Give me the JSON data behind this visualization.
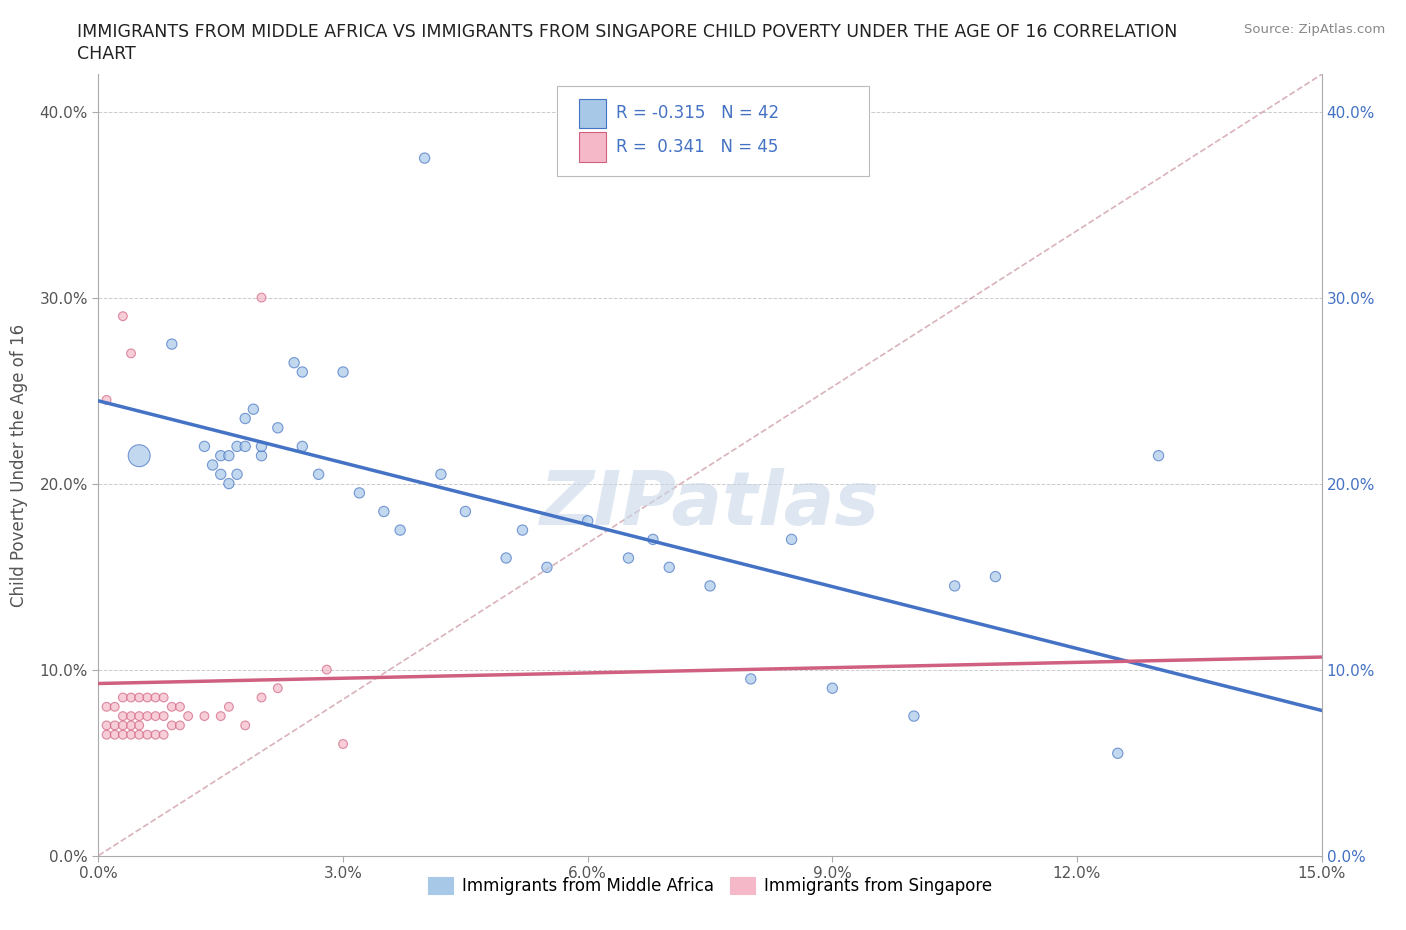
{
  "title_line1": "IMMIGRANTS FROM MIDDLE AFRICA VS IMMIGRANTS FROM SINGAPORE CHILD POVERTY UNDER THE AGE OF 16 CORRELATION",
  "title_line2": "CHART",
  "source": "Source: ZipAtlas.com",
  "ylabel": "Child Poverty Under the Age of 16",
  "xlim": [
    0.0,
    0.15
  ],
  "ylim": [
    0.0,
    0.42
  ],
  "x_ticks": [
    0.0,
    0.03,
    0.06,
    0.09,
    0.12,
    0.15
  ],
  "x_tick_labels": [
    "0.0%",
    "3.0%",
    "6.0%",
    "9.0%",
    "12.0%",
    "15.0%"
  ],
  "y_ticks": [
    0.0,
    0.1,
    0.2,
    0.3,
    0.4
  ],
  "y_tick_labels": [
    "0.0%",
    "10.0%",
    "20.0%",
    "30.0%",
    "40.0%"
  ],
  "blue_color": "#a8c8e8",
  "pink_color": "#f4b8c8",
  "blue_line_color": "#4472c4",
  "pink_line_color": "#d06080",
  "diag_line_color": "#d0a0a8",
  "legend_R_blue": "-0.315",
  "legend_N_blue": "42",
  "legend_R_pink": "0.341",
  "legend_N_pink": "45",
  "legend_label_blue": "Immigrants from Middle Africa",
  "legend_label_pink": "Immigrants from Singapore",
  "watermark": "ZIPatlas",
  "blue_scatter_x": [
    0.005,
    0.012,
    0.013,
    0.014,
    0.014,
    0.015,
    0.016,
    0.017,
    0.018,
    0.018,
    0.019,
    0.02,
    0.022,
    0.024,
    0.025,
    0.025,
    0.027,
    0.028,
    0.03,
    0.032,
    0.035,
    0.037,
    0.04,
    0.042,
    0.045,
    0.05,
    0.052,
    0.055,
    0.06,
    0.065,
    0.068,
    0.07,
    0.075,
    0.08,
    0.085,
    0.09,
    0.1,
    0.105,
    0.11,
    0.125,
    0.13,
    0.009
  ],
  "blue_scatter_y": [
    0.215,
    0.21,
    0.22,
    0.205,
    0.215,
    0.205,
    0.215,
    0.205,
    0.235,
    0.22,
    0.24,
    0.215,
    0.225,
    0.265,
    0.22,
    0.26,
    0.205,
    0.19,
    0.26,
    0.195,
    0.185,
    0.175,
    0.375,
    0.205,
    0.185,
    0.16,
    0.175,
    0.155,
    0.18,
    0.16,
    0.17,
    0.155,
    0.145,
    0.095,
    0.17,
    0.085,
    0.075,
    0.145,
    0.15,
    0.055,
    0.215,
    0.275
  ],
  "blue_scatter_sizes": [
    250,
    60,
    60,
    60,
    60,
    60,
    60,
    60,
    60,
    60,
    60,
    60,
    60,
    60,
    60,
    60,
    60,
    60,
    60,
    60,
    60,
    60,
    60,
    60,
    60,
    60,
    60,
    60,
    60,
    60,
    60,
    60,
    60,
    60,
    60,
    60,
    60,
    60,
    60,
    60,
    60,
    60
  ],
  "pink_scatter_x": [
    0.001,
    0.001,
    0.001,
    0.002,
    0.002,
    0.002,
    0.003,
    0.003,
    0.003,
    0.003,
    0.004,
    0.004,
    0.004,
    0.004,
    0.005,
    0.005,
    0.005,
    0.005,
    0.006,
    0.006,
    0.006,
    0.006,
    0.007,
    0.007,
    0.007,
    0.007,
    0.008,
    0.008,
    0.008,
    0.009,
    0.009,
    0.009,
    0.01,
    0.01,
    0.011,
    0.012,
    0.013,
    0.014,
    0.015,
    0.016,
    0.018,
    0.02,
    0.022,
    0.025,
    0.03
  ],
  "pink_scatter_y": [
    0.065,
    0.075,
    0.085,
    0.07,
    0.075,
    0.085,
    0.065,
    0.07,
    0.075,
    0.085,
    0.065,
    0.07,
    0.075,
    0.085,
    0.065,
    0.07,
    0.075,
    0.085,
    0.065,
    0.07,
    0.075,
    0.085,
    0.065,
    0.07,
    0.075,
    0.085,
    0.07,
    0.075,
    0.085,
    0.065,
    0.07,
    0.075,
    0.07,
    0.075,
    0.075,
    0.08,
    0.075,
    0.08,
    0.075,
    0.08,
    0.07,
    0.085,
    0.09,
    0.1,
    0.06
  ],
  "pink_scatter_sizes": [
    40,
    40,
    40,
    40,
    40,
    40,
    40,
    40,
    40,
    40,
    40,
    40,
    40,
    40,
    40,
    40,
    40,
    40,
    40,
    40,
    40,
    40,
    40,
    40,
    40,
    40,
    40,
    40,
    40,
    40,
    40,
    40,
    40,
    40,
    40,
    40,
    40,
    40,
    40,
    40,
    40,
    40,
    40,
    40,
    40
  ]
}
